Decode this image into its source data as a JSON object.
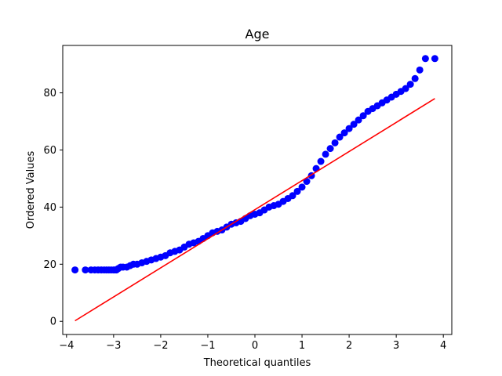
{
  "chart_data": {
    "type": "scatter",
    "title": "Age",
    "xlabel": "Theoretical quantiles",
    "ylabel": "Ordered Values",
    "xlim": [
      -4.08,
      4.18
    ],
    "ylim": [
      -4.6,
      96.6
    ],
    "xticks": [
      -4,
      -3,
      -2,
      -1,
      0,
      1,
      2,
      3,
      4
    ],
    "yticks": [
      0,
      20,
      40,
      60,
      80
    ],
    "grid": false,
    "marker_color": "#0000ff",
    "line_color": "#ff0000",
    "fit_line": {
      "x": [
        -3.82,
        3.82
      ],
      "y": [
        0.2,
        78.0
      ]
    },
    "series": [
      {
        "x": [
          -3.82,
          -3.6,
          -3.48,
          -3.4,
          -3.33,
          -3.26,
          -3.2,
          -3.15,
          -3.1,
          -3.05,
          -3.0,
          -2.97,
          -2.94,
          -2.9,
          -2.85,
          -2.8,
          -2.72,
          -2.65,
          -2.58,
          -2.5,
          -2.4,
          -2.3,
          -2.2,
          -2.1,
          -2.0,
          -1.9,
          -1.8,
          -1.7,
          -1.6,
          -1.5,
          -1.4,
          -1.3,
          -1.2,
          -1.1,
          -1.0,
          -0.9,
          -0.8,
          -0.7,
          -0.6,
          -0.5,
          -0.4,
          -0.3,
          -0.2,
          -0.1,
          0.0,
          0.1,
          0.2,
          0.3,
          0.4,
          0.5,
          0.6,
          0.7,
          0.8,
          0.9,
          1.0,
          1.1,
          1.2,
          1.3,
          1.4,
          1.5,
          1.6,
          1.7,
          1.8,
          1.9,
          2.0,
          2.1,
          2.2,
          2.3,
          2.4,
          2.5,
          2.6,
          2.7,
          2.8,
          2.9,
          3.0,
          3.1,
          3.2,
          3.3,
          3.4,
          3.5,
          3.62,
          3.82
        ],
        "y": [
          18.0,
          18.0,
          18.0,
          18.0,
          18.0,
          18.0,
          18.0,
          18.0,
          18.0,
          18.0,
          18.0,
          18.0,
          18.0,
          18.5,
          19.0,
          19.0,
          19.0,
          19.5,
          20.0,
          20.0,
          20.5,
          21.0,
          21.5,
          22.0,
          22.5,
          23.0,
          24.0,
          24.5,
          25.0,
          26.0,
          27.0,
          27.5,
          28.0,
          29.0,
          30.0,
          31.0,
          31.5,
          32.0,
          33.0,
          34.0,
          34.5,
          35.0,
          36.0,
          37.0,
          37.5,
          38.0,
          39.0,
          40.0,
          40.5,
          41.0,
          42.0,
          43.0,
          44.0,
          45.5,
          47.0,
          49.0,
          51.0,
          53.5,
          56.0,
          58.5,
          60.5,
          62.5,
          64.5,
          66.0,
          67.5,
          69.0,
          70.5,
          72.0,
          73.5,
          74.5,
          75.5,
          76.5,
          77.5,
          78.5,
          79.5,
          80.5,
          81.5,
          83.0,
          85.0,
          88.0,
          92.0,
          92.0
        ]
      }
    ]
  }
}
